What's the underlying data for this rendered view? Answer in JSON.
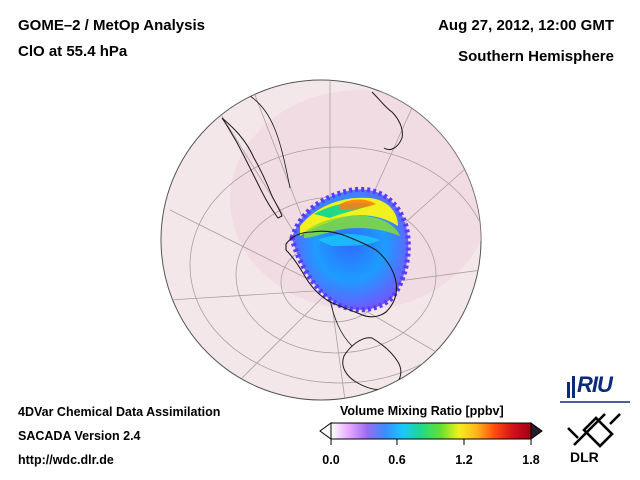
{
  "header": {
    "left_line1": "GOME–2 / MetOp Analysis",
    "left_line2": "ClO at 55.4 hPa",
    "right_line1": "Aug 27, 2012, 12:00 GMT",
    "right_line2": "Southern Hemisphere"
  },
  "footer": {
    "line1": "4DVar Chemical Data Assimilation",
    "line2": "SACADA Version 2.4",
    "line3": "http://wdc.dlr.de"
  },
  "colorbar": {
    "title": "Volume Mixing Ratio [ppbv]",
    "ticks": [
      "0.0",
      "0.6",
      "1.2",
      "1.8"
    ],
    "tick_values": [
      0.0,
      0.6,
      1.2,
      1.8
    ],
    "range": [
      0.0,
      1.8
    ],
    "colors": [
      "#ffffff",
      "#e6a8ff",
      "#9a6cf0",
      "#3a8cff",
      "#19c8ff",
      "#1fd88a",
      "#66e030",
      "#f2f01e",
      "#ffb31a",
      "#ff4a10",
      "#d4101a",
      "#a00014"
    ]
  },
  "logos": {
    "riu": "RIU",
    "dlr": "DLR"
  },
  "map_colors": {
    "globe_background": "#f4e7ea",
    "land_line": "#1a1a1a",
    "grid_line": "#a8a0a0"
  }
}
